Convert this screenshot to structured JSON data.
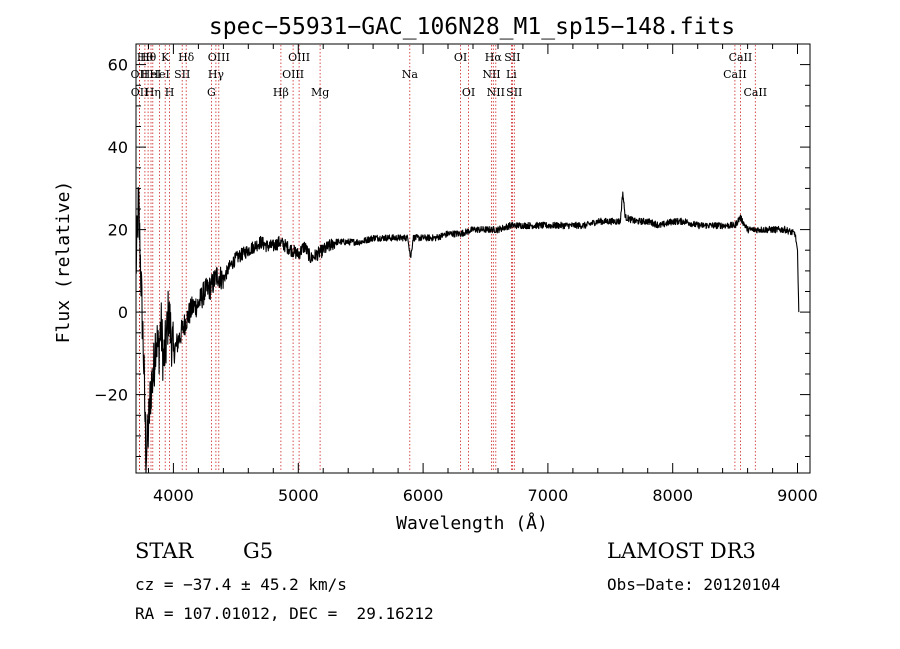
{
  "chart_data": {
    "type": "line",
    "title": "spec−55931−GAC_106N28_M1_sp15−148.fits",
    "xlabel": "Wavelength (Å)",
    "ylabel": "Flux (relative)",
    "xlim": [
      3700,
      9100
    ],
    "ylim": [
      -39,
      65
    ],
    "xticks": [
      4000,
      5000,
      6000,
      7000,
      8000,
      9000
    ],
    "xtick_labels": [
      "4000",
      "5000",
      "6000",
      "7000",
      "8000",
      "9000"
    ],
    "yticks": [
      -20,
      0,
      20,
      40,
      60
    ],
    "ytick_labels": [
      "−20",
      "0",
      "20",
      "40",
      "60"
    ],
    "line_color": "#000000",
    "marker_color": "#cc2222",
    "series": [
      {
        "name": "flux",
        "x": [
          3700,
          3720,
          3740,
          3760,
          3780,
          3800,
          3820,
          3840,
          3860,
          3880,
          3900,
          3920,
          3940,
          3960,
          3980,
          4000,
          4050,
          4100,
          4150,
          4200,
          4250,
          4300,
          4350,
          4400,
          4450,
          4500,
          4550,
          4600,
          4650,
          4700,
          4750,
          4800,
          4850,
          4900,
          4950,
          5000,
          5050,
          5100,
          5150,
          5200,
          5250,
          5300,
          5400,
          5500,
          5600,
          5700,
          5800,
          5880,
          5900,
          5920,
          6000,
          6100,
          6200,
          6300,
          6400,
          6500,
          6560,
          6600,
          6700,
          6800,
          6900,
          7000,
          7100,
          7200,
          7300,
          7400,
          7500,
          7580,
          7600,
          7620,
          7700,
          7800,
          7900,
          8000,
          8100,
          8200,
          8300,
          8400,
          8500,
          8540,
          8600,
          8700,
          8800,
          8900,
          8980,
          9000,
          9010
        ],
        "y": [
          10,
          27,
          8,
          -10,
          -35,
          -28,
          -18,
          -15,
          -5,
          -10,
          -3,
          -12,
          -8,
          0,
          -5,
          -10,
          -6,
          -2,
          1,
          2,
          5,
          6,
          9,
          8,
          11,
          13,
          14,
          15,
          16,
          17,
          16,
          16,
          17,
          16,
          15,
          14,
          16,
          13,
          14,
          15,
          16,
          17,
          17,
          17,
          18,
          18,
          18,
          18,
          13,
          18,
          18,
          18,
          19,
          19,
          20,
          20,
          20,
          20,
          21,
          21,
          21,
          21,
          21,
          21,
          21,
          22,
          22,
          22,
          29,
          23,
          22,
          22,
          21,
          22,
          22,
          21,
          21,
          21,
          21,
          23,
          20,
          20,
          20,
          20,
          19,
          15,
          0
        ]
      }
    ],
    "lines": [
      {
        "x": 3727,
        "label": "OII",
        "row": 2
      },
      {
        "x": 3729,
        "label": "OII",
        "row": 3
      },
      {
        "x": 3771,
        "label": "Hθ",
        "row": 1
      },
      {
        "x": 3797,
        "label": "Hθ",
        "row": 1
      },
      {
        "x": 3820,
        "label": "HeI",
        "row": 2
      },
      {
        "x": 3835,
        "label": "Hη",
        "row": 3
      },
      {
        "x": 3889,
        "label": "HeI",
        "row": 2
      },
      {
        "x": 3934,
        "label": "K",
        "row": 1
      },
      {
        "x": 3968,
        "label": "H",
        "row": 3
      },
      {
        "x": 4070,
        "label": "SII",
        "row": 2
      },
      {
        "x": 4102,
        "label": "Hδ",
        "row": 1
      },
      {
        "x": 4304,
        "label": "G",
        "row": 3
      },
      {
        "x": 4340,
        "label": "Hγ",
        "row": 2
      },
      {
        "x": 4363,
        "label": "OIII",
        "row": 1
      },
      {
        "x": 4861,
        "label": "Hβ",
        "row": 3
      },
      {
        "x": 4959,
        "label": "OIII",
        "row": 2
      },
      {
        "x": 5007,
        "label": "OIII",
        "row": 1
      },
      {
        "x": 5175,
        "label": "Mg",
        "row": 3
      },
      {
        "x": 5894,
        "label": "Na",
        "row": 2
      },
      {
        "x": 6300,
        "label": "OI",
        "row": 1
      },
      {
        "x": 6364,
        "label": "OI",
        "row": 3
      },
      {
        "x": 6548,
        "label": "NII",
        "row": 2
      },
      {
        "x": 6563,
        "label": "Hα",
        "row": 1
      },
      {
        "x": 6583,
        "label": "NII",
        "row": 3
      },
      {
        "x": 6708,
        "label": "Li",
        "row": 2
      },
      {
        "x": 6716,
        "label": "SII",
        "row": 1
      },
      {
        "x": 6731,
        "label": "SII",
        "row": 3
      },
      {
        "x": 8498,
        "label": "CaII",
        "row": 2
      },
      {
        "x": 8542,
        "label": "CaII",
        "row": 1
      },
      {
        "x": 8662,
        "label": "CaII",
        "row": 3
      }
    ]
  },
  "footer": {
    "object_class": "STAR",
    "subclass": "G5",
    "survey": "LAMOST DR3",
    "cz": "cz = −37.4 ± 45.2 km/s",
    "obs_date": "Obs−Date: 20120104",
    "coords": "RA = 107.01012, DEC =  29.16212"
  }
}
